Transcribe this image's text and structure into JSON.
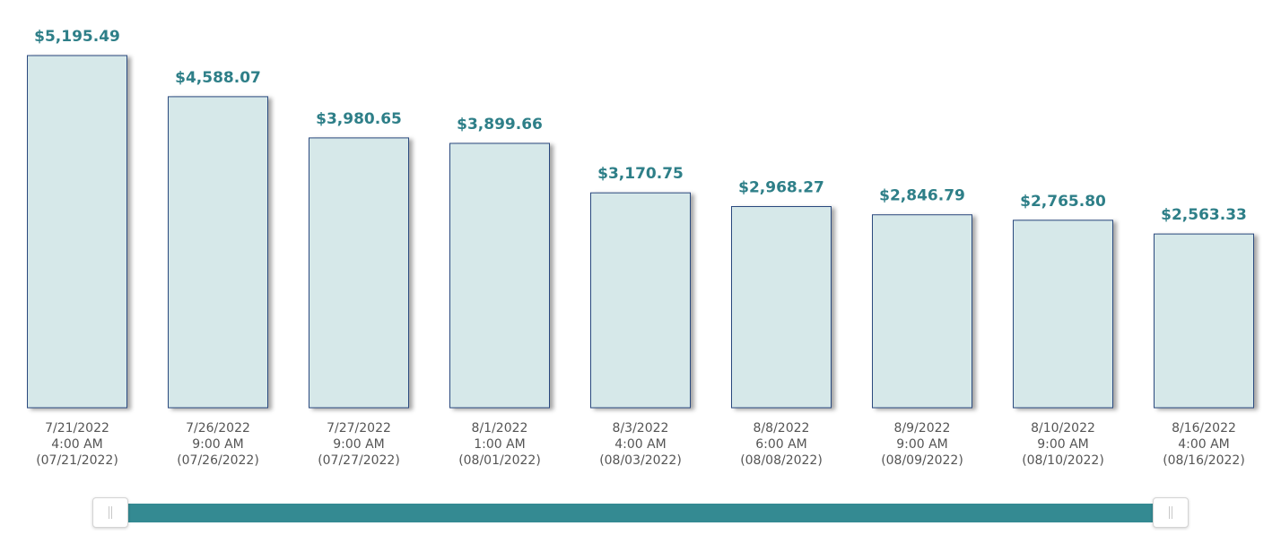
{
  "chart_data": {
    "type": "bar",
    "categories": [
      [
        "7/21/2022",
        "4:00 AM",
        "(07/21/2022)"
      ],
      [
        "7/26/2022",
        "9:00 AM",
        "(07/26/2022)"
      ],
      [
        "7/27/2022",
        "9:00 AM",
        "(07/27/2022)"
      ],
      [
        "8/1/2022",
        "1:00 AM",
        "(08/01/2022)"
      ],
      [
        "8/3/2022",
        "4:00 AM",
        "(08/03/2022)"
      ],
      [
        "8/8/2022",
        "6:00 AM",
        "(08/08/2022)"
      ],
      [
        "8/9/2022",
        "9:00 AM",
        "(08/09/2022)"
      ],
      [
        "8/10/2022",
        "9:00 AM",
        "(08/10/2022)"
      ],
      [
        "8/16/2022",
        "4:00 AM",
        "(08/16/2022)"
      ]
    ],
    "values": [
      5195.49,
      4588.07,
      3980.65,
      3899.66,
      3170.75,
      2968.27,
      2846.79,
      2765.8,
      2563.33
    ],
    "value_labels": [
      "$5,195.49",
      "$4,588.07",
      "$3,980.65",
      "$3,899.66",
      "$3,170.75",
      "$2,968.27",
      "$2,846.79",
      "$2,765.80",
      "$2,563.33"
    ],
    "title": "",
    "xlabel": "",
    "ylabel": "",
    "ylim": [
      0,
      5195.49
    ],
    "grid": false,
    "legend": "none"
  },
  "colors": {
    "bar_fill": "#d6e8e9",
    "bar_stroke": "#2c4a7e",
    "value_label": "#2e7f88",
    "category_label": "#555555",
    "slider_track": "#348a92"
  },
  "range_slider": {
    "start": 0,
    "end": 1
  }
}
